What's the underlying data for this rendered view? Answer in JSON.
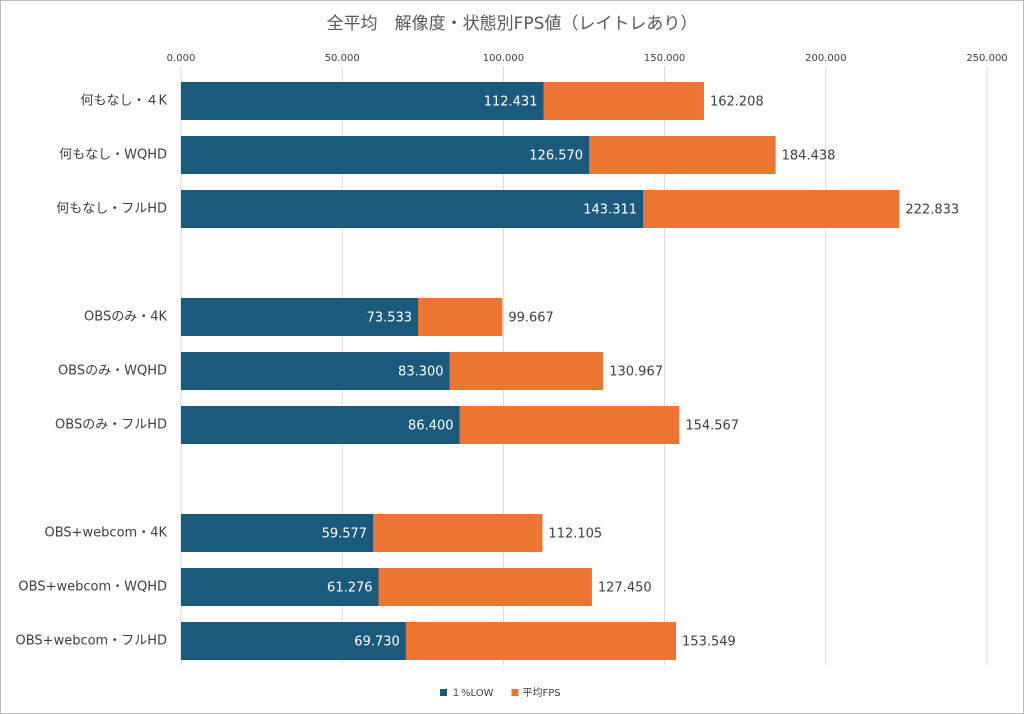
{
  "chart_data": {
    "type": "hbar-overlap",
    "title": "全平均　解像度・状態別FPS値（レイトレあり）",
    "categories": [
      "何もなし・４K",
      "何もなし・WQHD",
      "何もなし・フルHD",
      null,
      "OBSのみ・4K",
      "OBSのみ・WQHD",
      "OBSのみ・フルHD",
      null,
      "OBS+webcom・4K",
      "OBS+webcom・WQHD",
      "OBS+webcom・フルHD"
    ],
    "series": [
      {
        "name": "１%LOW",
        "color": "#1c5a7d",
        "values": [
          112.431,
          126.57,
          143.311,
          null,
          73.533,
          83.3,
          86.4,
          null,
          59.577,
          61.276,
          69.73
        ],
        "value_labels": [
          "112.431",
          "126.570",
          "143.311",
          null,
          "73.533",
          "83.300",
          "86.400",
          null,
          "59.577",
          "61.276",
          "69.730"
        ]
      },
      {
        "name": "平均FPS",
        "color": "#ed7534",
        "values": [
          162.208,
          184.438,
          222.833,
          null,
          99.667,
          130.967,
          154.567,
          null,
          112.105,
          127.45,
          153.549
        ],
        "value_labels": [
          "162.208",
          "184.438",
          "222.833",
          null,
          "99.667",
          "130.967",
          "154.567",
          null,
          "112.105",
          "127.450",
          "153.549"
        ]
      }
    ],
    "xlim": [
      0,
      250
    ],
    "xticks": [
      {
        "value": 0,
        "label": "0.000"
      },
      {
        "value": 50,
        "label": "50.000"
      },
      {
        "value": 100,
        "label": "100.000"
      },
      {
        "value": 150,
        "label": "150.000"
      },
      {
        "value": 200,
        "label": "200.000"
      },
      {
        "value": 250,
        "label": "250.000"
      }
    ],
    "grid": true,
    "legend": "bottom"
  }
}
